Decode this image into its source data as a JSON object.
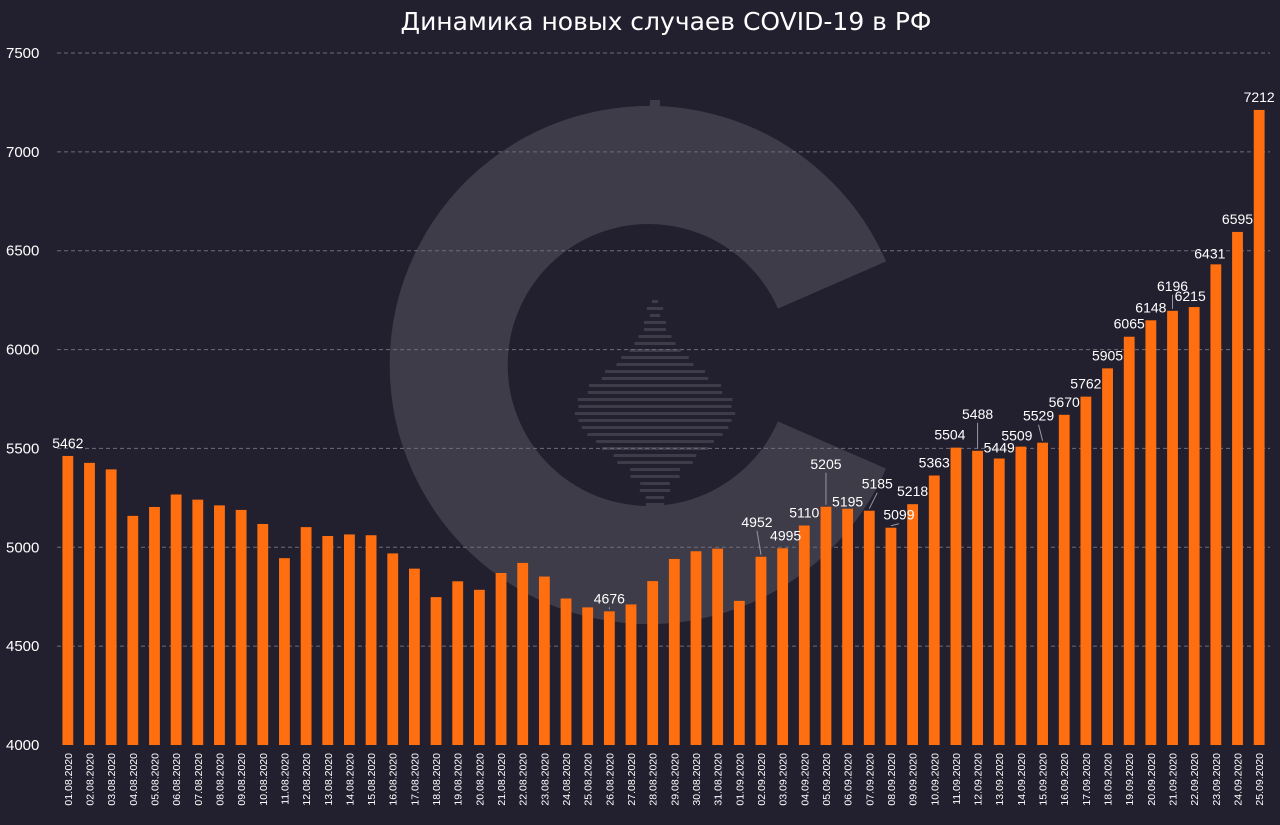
{
  "colors": {
    "background": "#221f2f",
    "bar": "#ff6f0f",
    "grid": "#6f6c7c",
    "text": "#ffffff"
  },
  "watermark": {
    "icon": "logo-c-seismograph"
  },
  "chart_data": {
    "type": "bar",
    "title": "Динамика новых случаев COVID-19 в РФ",
    "xlabel": "",
    "ylabel": "",
    "ylim": [
      4000,
      7500
    ],
    "yticks": [
      4000,
      4500,
      5000,
      5500,
      6000,
      6500,
      7000,
      7500
    ],
    "grid": true,
    "legend": "none",
    "categories": [
      "01.08.2020",
      "02.08.2020",
      "03.08.2020",
      "04.08.2020",
      "05.08.2020",
      "06.08.2020",
      "07.08.2020",
      "08.08.2020",
      "09.08.2020",
      "10.08.2020",
      "11.08.2020",
      "12.08.2020",
      "13.08.2020",
      "14.08.2020",
      "15.08.2020",
      "16.08.2020",
      "17.08.2020",
      "18.08.2020",
      "19.08.2020",
      "20.08.2020",
      "21.08.2020",
      "22.08.2020",
      "23.08.2020",
      "24.08.2020",
      "25.08.2020",
      "26.08.2020",
      "27.08.2020",
      "28.08.2020",
      "29.08.2020",
      "30.08.2020",
      "31.08.2020",
      "01.09.2020",
      "02.09.2020",
      "03.09.2020",
      "04.09.2020",
      "05.09.2020",
      "06.09.2020",
      "07.09.2020",
      "08.09.2020",
      "09.09.2020",
      "10.09.2020",
      "11.09.2020",
      "12.09.2020",
      "13.09.2020",
      "14.09.2020",
      "15.09.2020",
      "16.09.2020",
      "17.09.2020",
      "18.09.2020",
      "19.09.2020",
      "20.09.2020",
      "21.09.2020",
      "22.09.2020",
      "23.09.2020",
      "24.09.2020",
      "25.09.2020"
    ],
    "values": [
      5462,
      5427,
      5394,
      5159,
      5204,
      5267,
      5241,
      5212,
      5189,
      5118,
      4945,
      5102,
      5057,
      5065,
      5061,
      4969,
      4892,
      4748,
      4828,
      4785,
      4870,
      4921,
      4852,
      4741,
      4696,
      4676,
      4711,
      4829,
      4941,
      4980,
      4993,
      4729,
      4952,
      4995,
      5110,
      5205,
      5195,
      5185,
      5099,
      5218,
      5363,
      5504,
      5488,
      5449,
      5509,
      5529,
      5670,
      5762,
      5905,
      6065,
      6148,
      6196,
      6215,
      6431,
      6595,
      7212
    ],
    "labeled_values": [
      {
        "category": "01.08.2020",
        "label": "5462"
      },
      {
        "category": "26.08.2020",
        "label": "4676"
      },
      {
        "category": "02.09.2020",
        "label": "4952"
      },
      {
        "category": "03.09.2020",
        "label": "4995"
      },
      {
        "category": "04.09.2020",
        "label": "5110"
      },
      {
        "category": "05.09.2020",
        "label": "5205"
      },
      {
        "category": "06.09.2020",
        "label": "5195"
      },
      {
        "category": "07.09.2020",
        "label": "5185"
      },
      {
        "category": "08.09.2020",
        "label": "5099"
      },
      {
        "category": "09.09.2020",
        "label": "5218"
      },
      {
        "category": "10.09.2020",
        "label": "5363"
      },
      {
        "category": "11.09.2020",
        "label": "5504"
      },
      {
        "category": "12.09.2020",
        "label": "5488"
      },
      {
        "category": "13.09.2020",
        "label": "5449"
      },
      {
        "category": "14.09.2020",
        "label": "5509"
      },
      {
        "category": "15.09.2020",
        "label": "5529"
      },
      {
        "category": "16.09.2020",
        "label": "5670"
      },
      {
        "category": "17.09.2020",
        "label": "5762"
      },
      {
        "category": "18.09.2020",
        "label": "5905"
      },
      {
        "category": "19.09.2020",
        "label": "6065"
      },
      {
        "category": "20.09.2020",
        "label": "6148"
      },
      {
        "category": "21.09.2020",
        "label": "6196"
      },
      {
        "category": "22.09.2020",
        "label": "6215"
      },
      {
        "category": "23.09.2020",
        "label": "6431"
      },
      {
        "category": "24.09.2020",
        "label": "6595"
      },
      {
        "category": "25.09.2020",
        "label": "7212"
      }
    ]
  }
}
